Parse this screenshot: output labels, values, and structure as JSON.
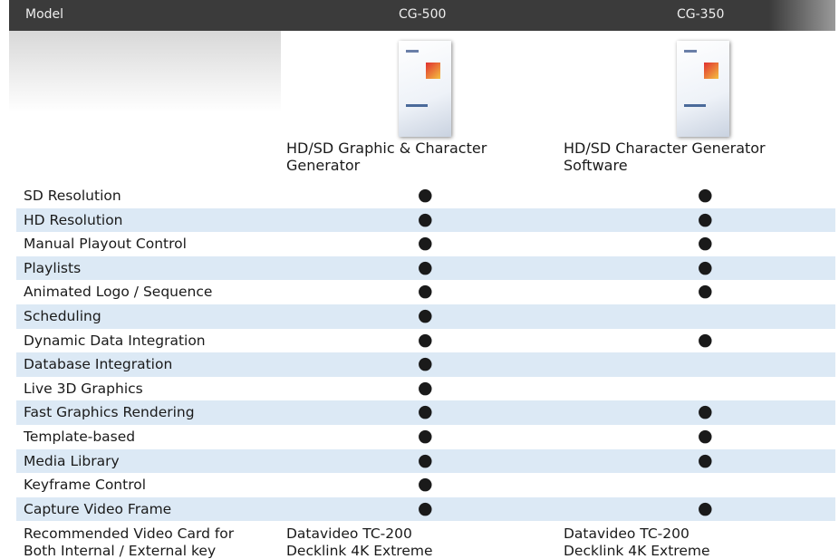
{
  "header": {
    "model": "Model",
    "col1": "CG-500",
    "col2": "CG-350"
  },
  "products": [
    [
      "HD/SD Graphic & Character",
      "Generator"
    ],
    [
      "HD/SD Character Generator",
      "Software"
    ]
  ],
  "rows": [
    [
      "SD Resolution",
      "●",
      "●"
    ],
    [
      "HD Resolution",
      "●",
      "●"
    ],
    [
      "Manual Playout Control",
      "●",
      "●"
    ],
    [
      "Playlists",
      "●",
      "●"
    ],
    [
      "Animated Logo / Sequence",
      "●",
      "●"
    ],
    [
      "Scheduling",
      "●",
      null
    ],
    [
      "Dynamic Data Integration",
      "●",
      "●"
    ],
    [
      "Database Integration",
      "●",
      null
    ],
    [
      "Live 3D Graphics",
      "●",
      null
    ],
    [
      "Fast Graphics Rendering",
      "●",
      "●"
    ],
    [
      "Template-based",
      "●",
      "●"
    ],
    [
      "Media Library",
      "●",
      "●"
    ],
    [
      "Keyframe Control",
      "●",
      null
    ],
    [
      "Capture Video Frame",
      "●",
      "●"
    ]
  ],
  "last_row": [
    [
      "Recommended Video Card for",
      "Both Internal / External key"
    ],
    [
      "Datavideo TC-200",
      "Decklink 4K Extreme"
    ],
    [
      "Datavideo TC-200",
      "Decklink 4K Extreme"
    ]
  ]
}
